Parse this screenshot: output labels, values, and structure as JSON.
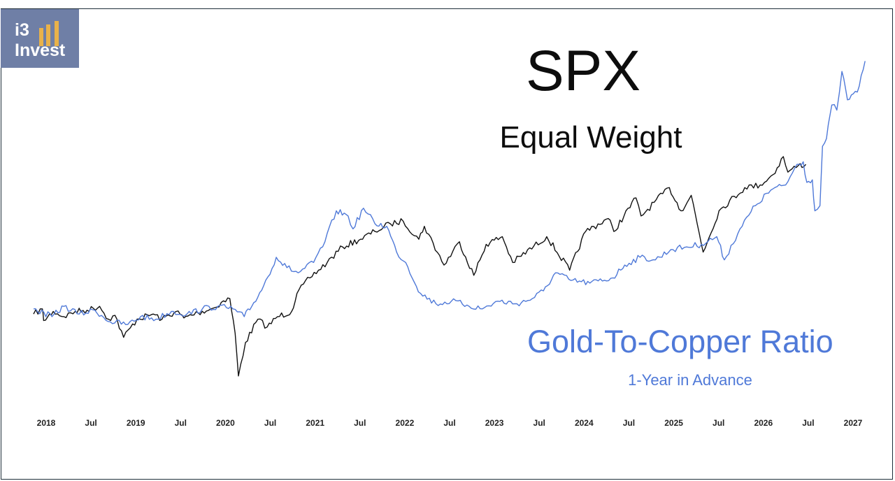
{
  "logo": {
    "line1": "i3",
    "line2": "Invest",
    "bars_color": "#e9b24a",
    "background": "#6f7fa6"
  },
  "chart_data": {
    "type": "line",
    "title": "SPX",
    "subtitle": "Equal Weight",
    "annotation": {
      "title": "Gold-To-Copper Ratio",
      "subtitle": "1-Year in Advance"
    },
    "xaxis": {
      "ticks": [
        "2018",
        "Jul",
        "2019",
        "Jul",
        "2020",
        "Jul",
        "2021",
        "Jul",
        "2022",
        "Jul",
        "2023",
        "Jul",
        "2024",
        "Jul",
        "2025",
        "Jul",
        "2026",
        "Jul",
        "2027"
      ],
      "range": [
        "2018-01-01",
        "2027-01-01"
      ]
    },
    "grid": false,
    "legend": "none",
    "series": [
      {
        "color": "#111111",
        "points": [
          [
            "2018-01-01",
            60
          ],
          [
            "2018-02-05",
            64
          ],
          [
            "2018-02-10",
            55
          ],
          [
            "2018-03-20",
            62
          ],
          [
            "2018-05-01",
            58
          ],
          [
            "2018-06-15",
            62
          ],
          [
            "2018-08-01",
            63
          ],
          [
            "2018-09-20",
            66
          ],
          [
            "2018-10-25",
            56
          ],
          [
            "2018-11-20",
            59
          ],
          [
            "2018-12-24",
            42
          ],
          [
            "2019-02-15",
            56
          ],
          [
            "2019-04-20",
            60
          ],
          [
            "2019-05-25",
            56
          ],
          [
            "2019-07-20",
            62
          ],
          [
            "2019-08-20",
            57
          ],
          [
            "2019-10-15",
            61
          ],
          [
            "2019-12-20",
            65
          ],
          [
            "2020-01-15",
            69
          ],
          [
            "2020-02-18",
            72
          ],
          [
            "2020-03-10",
            45
          ],
          [
            "2020-03-23",
            12
          ],
          [
            "2020-04-20",
            38
          ],
          [
            "2020-06-08",
            56
          ],
          [
            "2020-07-15",
            50
          ],
          [
            "2020-08-25",
            58
          ],
          [
            "2020-10-20",
            62
          ],
          [
            "2020-11-10",
            76
          ],
          [
            "2020-12-31",
            88
          ],
          [
            "2021-03-10",
            100
          ],
          [
            "2021-05-10",
            112
          ],
          [
            "2021-07-20",
            118
          ],
          [
            "2021-09-15",
            124
          ],
          [
            "2021-11-15",
            130
          ],
          [
            "2022-01-05",
            132
          ],
          [
            "2022-03-08",
            118
          ],
          [
            "2022-03-30",
            128
          ],
          [
            "2022-06-16",
            98
          ],
          [
            "2022-08-16",
            116
          ],
          [
            "2022-10-12",
            90
          ],
          [
            "2022-11-30",
            114
          ],
          [
            "2023-02-02",
            120
          ],
          [
            "2023-03-15",
            100
          ],
          [
            "2023-07-28",
            120
          ],
          [
            "2023-10-27",
            94
          ],
          [
            "2023-12-29",
            124
          ],
          [
            "2024-03-28",
            134
          ],
          [
            "2024-04-19",
            124
          ],
          [
            "2024-07-16",
            150
          ],
          [
            "2024-08-05",
            136
          ],
          [
            "2024-11-25",
            158
          ],
          [
            "2025-01-10",
            140
          ],
          [
            "2025-02-20",
            152
          ],
          [
            "2025-04-08",
            108
          ],
          [
            "2025-06-10",
            140
          ],
          [
            "2025-09-20",
            158
          ],
          [
            "2025-11-20",
            160
          ],
          [
            "2026-01-10",
            168
          ],
          [
            "2026-02-20",
            182
          ],
          [
            "2026-03-10",
            170
          ],
          [
            "2026-04-20",
            175
          ],
          [
            "2026-05-20",
            176
          ]
        ]
      },
      {
        "color": "#4f79d8",
        "points": [
          [
            "2018-01-01",
            64
          ],
          [
            "2018-03-15",
            58
          ],
          [
            "2018-05-01",
            66
          ],
          [
            "2018-07-01",
            60
          ],
          [
            "2018-09-01",
            63
          ],
          [
            "2018-11-01",
            54
          ],
          [
            "2019-01-10",
            52
          ],
          [
            "2019-03-01",
            58
          ],
          [
            "2019-05-01",
            56
          ],
          [
            "2019-07-01",
            62
          ],
          [
            "2019-09-01",
            60
          ],
          [
            "2019-11-01",
            64
          ],
          [
            "2020-01-01",
            66
          ],
          [
            "2020-03-01",
            64
          ],
          [
            "2020-04-15",
            58
          ],
          [
            "2020-05-15",
            66
          ],
          [
            "2020-07-01",
            82
          ],
          [
            "2020-08-20",
            104
          ],
          [
            "2020-10-01",
            96
          ],
          [
            "2020-11-15",
            92
          ],
          [
            "2021-01-15",
            100
          ],
          [
            "2021-03-01",
            116
          ],
          [
            "2021-04-15",
            140
          ],
          [
            "2021-06-01",
            136
          ],
          [
            "2021-06-20",
            126
          ],
          [
            "2021-08-01",
            142
          ],
          [
            "2021-09-15",
            130
          ],
          [
            "2021-11-01",
            128
          ],
          [
            "2021-12-10",
            108
          ],
          [
            "2022-01-15",
            100
          ],
          [
            "2022-03-15",
            76
          ],
          [
            "2022-05-15",
            68
          ],
          [
            "2022-07-15",
            70
          ],
          [
            "2022-09-15",
            67
          ],
          [
            "2022-11-15",
            64
          ],
          [
            "2023-01-15",
            70
          ],
          [
            "2023-04-01",
            68
          ],
          [
            "2023-06-01",
            72
          ],
          [
            "2023-07-15",
            78
          ],
          [
            "2023-09-01",
            92
          ],
          [
            "2023-11-01",
            86
          ],
          [
            "2024-01-15",
            84
          ],
          [
            "2024-04-15",
            88
          ],
          [
            "2024-06-01",
            98
          ],
          [
            "2024-08-01",
            104
          ],
          [
            "2024-10-01",
            102
          ],
          [
            "2024-12-01",
            110
          ],
          [
            "2025-02-01",
            112
          ],
          [
            "2025-04-01",
            114
          ],
          [
            "2025-06-01",
            120
          ],
          [
            "2025-07-01",
            102
          ],
          [
            "2025-09-01",
            126
          ],
          [
            "2025-11-01",
            144
          ],
          [
            "2026-01-01",
            156
          ],
          [
            "2026-03-01",
            160
          ],
          [
            "2026-04-15",
            176
          ],
          [
            "2026-05-10",
            178
          ],
          [
            "2026-05-24",
            162
          ],
          [
            "2026-06-15",
            164
          ],
          [
            "2026-06-25",
            140
          ],
          [
            "2026-07-15",
            144
          ],
          [
            "2026-07-25",
            190
          ],
          [
            "2026-08-10",
            196
          ],
          [
            "2026-08-31",
            222
          ],
          [
            "2026-09-20",
            218
          ],
          [
            "2026-10-10",
            248
          ],
          [
            "2026-11-01",
            226
          ],
          [
            "2026-12-10",
            232
          ],
          [
            "2027-01-10",
            256
          ]
        ]
      }
    ]
  }
}
